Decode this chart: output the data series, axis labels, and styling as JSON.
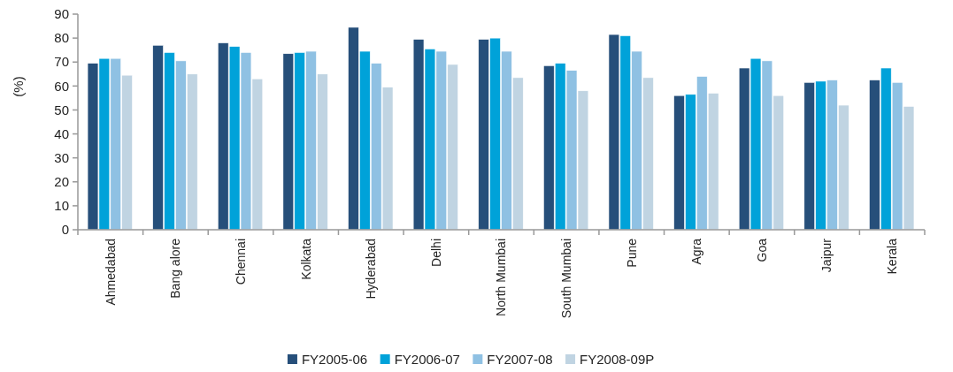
{
  "chart_data": {
    "type": "bar",
    "ylabel": "(%)",
    "categories": [
      "Ahmedabad",
      "Bang alore",
      "Chennai",
      "Kolkata",
      "Hyderabad",
      "Delhi",
      "North Mumbai",
      "South Mumbai",
      "Pune",
      "Agra",
      "Goa",
      "Jaipur",
      "Kerala"
    ],
    "series": [
      {
        "name": "FY2005-06",
        "color": "#264f7a",
        "values": [
          69.5,
          77,
          78,
          73.5,
          84.5,
          79.5,
          79.5,
          68.5,
          81.5,
          56,
          67.5,
          61.5,
          62.5
        ]
      },
      {
        "name": "FY2006-07",
        "color": "#00a2d9",
        "values": [
          71.5,
          74,
          76.5,
          74,
          74.5,
          75.5,
          80,
          69.5,
          81,
          56.5,
          71.5,
          62,
          67.5
        ]
      },
      {
        "name": "FY2007-08",
        "color": "#8fc1e3",
        "values": [
          71.5,
          70.5,
          74,
          74.5,
          69.5,
          74.5,
          74.5,
          66.5,
          74.5,
          64,
          70.5,
          62.5,
          61.5
        ]
      },
      {
        "name": "FY2008-09P",
        "color": "#c0d4e2",
        "values": [
          64.5,
          65,
          63,
          65,
          59.5,
          69,
          63.5,
          58,
          63.5,
          57,
          56,
          52,
          51.5
        ]
      }
    ],
    "ylim": [
      0,
      90
    ],
    "yticks": [
      0,
      10,
      20,
      30,
      40,
      50,
      60,
      70,
      80,
      90
    ],
    "grid": false,
    "legend": "bottom"
  }
}
